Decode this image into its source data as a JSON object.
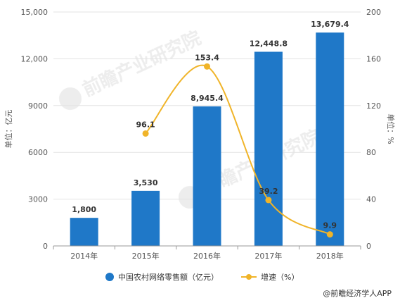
{
  "chart_data": {
    "type": "bar",
    "title": "",
    "categories": [
      "2014年",
      "2015年",
      "2016年",
      "2017年",
      "2018年"
    ],
    "series": [
      {
        "name": "中国农村网络零售额（亿元）",
        "type": "bar",
        "axis": "left",
        "values": [
          1800,
          3530,
          8945.4,
          12448.8,
          13679.4
        ],
        "labels": [
          "1,800",
          "3,530",
          "8,945.4",
          "12,448.8",
          "13,679.4"
        ],
        "color": "#1f78c8"
      },
      {
        "name": "增速（%）",
        "type": "line",
        "axis": "right",
        "values": [
          null,
          96.1,
          153.4,
          39.2,
          9.9
        ],
        "labels": [
          "",
          "96.1",
          "153.4",
          "39.2",
          "9.9"
        ],
        "color": "#f0b429"
      }
    ],
    "y_left": {
      "label": "单位：亿元",
      "ylim": [
        0,
        15000
      ],
      "ticks": [
        0,
        3000,
        6000,
        9000,
        12000,
        15000
      ],
      "tick_labels": [
        "0",
        "3000",
        "6000",
        "9000",
        "12,000",
        "15,000"
      ]
    },
    "y_right": {
      "label": "单位：%",
      "ylim": [
        0,
        200
      ],
      "ticks": [
        0,
        40,
        80,
        120,
        160,
        200
      ],
      "tick_labels": [
        "0",
        "40",
        "80",
        "120",
        "160",
        "200"
      ]
    },
    "grid": true,
    "legend_position": "bottom"
  },
  "watermark": "前瞻产业研究院",
  "source": "@前瞻经济学人APP"
}
